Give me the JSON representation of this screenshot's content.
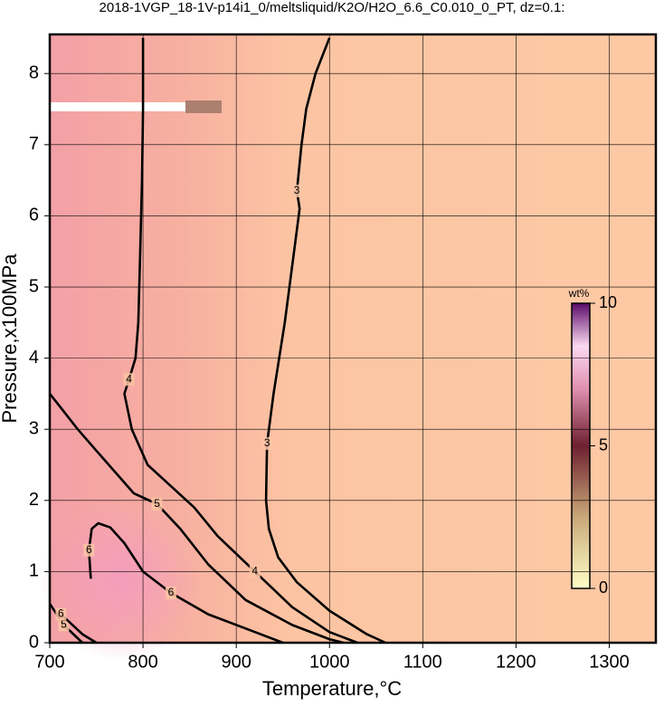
{
  "chart_data": {
    "type": "contour",
    "title": "2018-1VGP_18-1V-p14i1_0/meltsliquid/K2O/H2O_6.6_C0.010_0_PT, dz=0.1:",
    "x_label": "Temperature,°C",
    "y_label": "Pressure,x100MPa",
    "xlim": [
      700,
      1350
    ],
    "xticks": [
      700,
      800,
      900,
      1000,
      1100,
      1200,
      1300
    ],
    "ylim": [
      0,
      8.55
    ],
    "yticks": [
      0,
      1,
      2,
      3,
      4,
      5,
      6,
      7,
      8
    ],
    "grid": true,
    "contours": [
      {
        "level": 3,
        "x": [
          1000,
          985,
          975,
          970,
          965,
          968,
          962,
          952,
          940,
          933,
          932,
          935,
          945,
          965,
          1000,
          1040,
          1060
        ],
        "y": [
          8.5,
          8.0,
          7.5,
          7.0,
          6.35,
          6.1,
          5.5,
          4.5,
          3.5,
          2.8,
          2.0,
          1.6,
          1.2,
          0.85,
          0.45,
          0.12,
          0
        ]
      },
      {
        "level": 4,
        "x": [
          800,
          800,
          799,
          797,
          795,
          792,
          785,
          780,
          788,
          805,
          830,
          855,
          880,
          920,
          960,
          1000,
          1030
        ],
        "y": [
          8.5,
          7.5,
          6.5,
          5.5,
          4.5,
          4.0,
          3.7,
          3.5,
          3.0,
          2.5,
          2.2,
          1.9,
          1.5,
          1.0,
          0.5,
          0.15,
          0
        ]
      },
      {
        "level": 5,
        "x": [
          700,
          712,
          730,
          750,
          770,
          790,
          815,
          840,
          870,
          910,
          960,
          1000,
          1015,
          null,
          700,
          715,
          735
        ],
        "y": [
          3.5,
          3.3,
          3.0,
          2.7,
          2.4,
          2.1,
          1.95,
          1.6,
          1.1,
          0.6,
          0.25,
          0.05,
          0,
          null,
          0.55,
          0.25,
          0
        ]
      },
      {
        "level": 6,
        "x": [
          744,
          742,
          745,
          752,
          765,
          780,
          800,
          830,
          870,
          920,
          950,
          null,
          712,
          735,
          750
        ],
        "y": [
          0.9,
          1.3,
          1.6,
          1.68,
          1.62,
          1.4,
          1.0,
          0.7,
          0.4,
          0.15,
          0,
          null,
          0.4,
          0.12,
          0
        ]
      }
    ],
    "colorbar": {
      "label": "wt%",
      "lim": [
        0,
        10
      ],
      "ticks": [
        0,
        5,
        10
      ]
    }
  }
}
